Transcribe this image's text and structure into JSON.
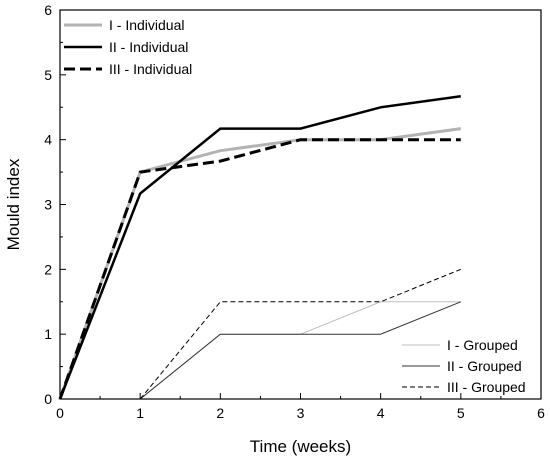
{
  "chart_data": {
    "type": "line",
    "title": "",
    "xlabel": "Time (weeks)",
    "ylabel": "Mould index",
    "xlim": [
      0,
      6
    ],
    "ylim": [
      0,
      6
    ],
    "x_ticks": [
      "0",
      "1",
      "2",
      "3",
      "4",
      "5",
      "6"
    ],
    "y_ticks": [
      "0",
      "1",
      "2",
      "3",
      "4",
      "5",
      "6"
    ],
    "grid": false,
    "legends": [
      {
        "placement": "top-left",
        "entries": [
          "I - Individual",
          "II - Individual",
          "III - Individual"
        ]
      },
      {
        "placement": "bottom-right",
        "entries": [
          "I - Grouped",
          "II - Grouped",
          "III - Grouped"
        ]
      }
    ],
    "series": [
      {
        "name": "I - Individual",
        "style": "solid",
        "color": "#b3b3b3",
        "width": 3,
        "x": [
          0,
          1,
          2,
          3,
          4,
          5
        ],
        "y": [
          0,
          3.5,
          3.83,
          4.0,
          4.0,
          4.17
        ]
      },
      {
        "name": "II - Individual",
        "style": "solid",
        "color": "#000000",
        "width": 2.5,
        "x": [
          0,
          1,
          2,
          3,
          4,
          5
        ],
        "y": [
          0,
          3.17,
          4.17,
          4.17,
          4.5,
          4.67
        ]
      },
      {
        "name": "III - Individual",
        "style": "dashed",
        "color": "#000000",
        "width": 3,
        "x": [
          0,
          1,
          2,
          3,
          4,
          5
        ],
        "y": [
          0,
          3.5,
          3.67,
          4.0,
          4.0,
          4.0
        ]
      },
      {
        "name": "I - Grouped",
        "style": "solid",
        "color": "#c0c0c0",
        "width": 1,
        "x": [
          1,
          2,
          3,
          4,
          5
        ],
        "y": [
          0,
          1.0,
          1.0,
          1.5,
          1.5
        ]
      },
      {
        "name": "II - Grouped",
        "style": "solid",
        "color": "#333333",
        "width": 1,
        "x": [
          1,
          2,
          3,
          4,
          5
        ],
        "y": [
          0,
          1.0,
          1.0,
          1.0,
          1.5
        ]
      },
      {
        "name": "III - Grouped",
        "style": "dashed",
        "color": "#000000",
        "width": 1,
        "x": [
          1,
          2,
          3,
          4,
          5
        ],
        "y": [
          0,
          1.5,
          1.5,
          1.5,
          2.0
        ]
      }
    ]
  }
}
